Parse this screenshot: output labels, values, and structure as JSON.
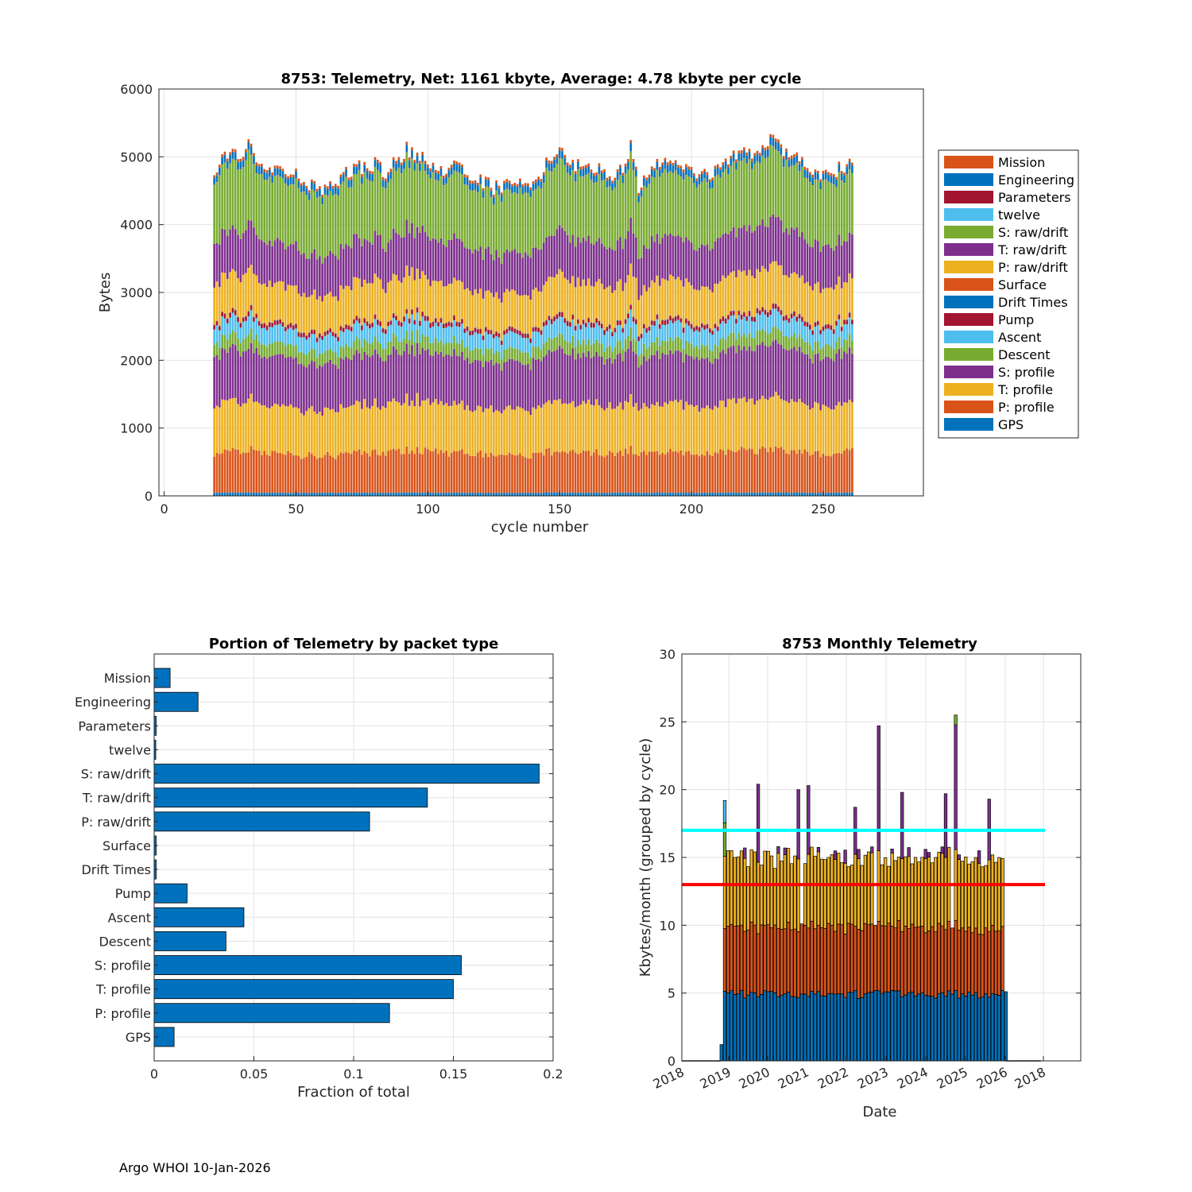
{
  "footer": "Argo WHOI 10-Jan-2026",
  "colors": {
    "mission": "#D95319",
    "engineering": "#0072BD",
    "parameters": "#A2142F",
    "twelve": "#4DBEEE",
    "s_raw": "#77AC30",
    "t_raw": "#7E2F8E",
    "p_raw": "#EDB120",
    "surface": "#D95319",
    "drift": "#0072BD",
    "pump": "#A2142F",
    "ascent": "#4DBEEE",
    "descent": "#77AC30",
    "s_prof": "#7E2F8E",
    "t_prof": "#EDB120",
    "p_prof": "#D95319",
    "gps": "#0072BD",
    "bar": "#0072BD",
    "line_cyan": "#00FFFF",
    "line_red": "#FF0000"
  },
  "chart_data": [
    {
      "type": "bar",
      "stacked": true,
      "title": "8753: Telemetry, Net:   1161 kbyte,  Average: 4.78 kbyte per cycle",
      "xlabel": "cycle number",
      "ylabel": "Bytes",
      "xlim": [
        -2,
        288
      ],
      "ylim": [
        0,
        6000
      ],
      "xticks": [
        0,
        50,
        100,
        150,
        200,
        250
      ],
      "yticks": [
        0,
        1000,
        2000,
        3000,
        4000,
        5000,
        6000
      ],
      "grid": true,
      "legend_position": "outside-right",
      "cycle_range": [
        19,
        261
      ],
      "legend": [
        "Mission",
        "Engineering",
        "Parameters",
        "twelve",
        "S: raw/drift",
        "T: raw/drift",
        "P: raw/drift",
        "Surface",
        "Drift Times",
        "Pump",
        "Ascent",
        "Descent",
        "S: profile",
        "T: profile",
        "P: profile",
        "GPS"
      ],
      "stack_order_bottom_to_top": [
        "GPS",
        "P: profile",
        "T: profile",
        "S: profile",
        "Descent",
        "Ascent",
        "Pump",
        "Drift Times",
        "Surface",
        "P: raw/drift",
        "T: raw/drift",
        "S: raw/drift",
        "twelve",
        "Parameters",
        "Engineering",
        "Mission"
      ],
      "typical_segment_bytes": [
        45,
        570,
        680,
        700,
        180,
        230,
        60,
        5,
        5,
        550,
        600,
        900,
        2,
        5,
        100,
        40
      ],
      "totals_sample": [
        [
          19,
          4700
        ],
        [
          20,
          4800
        ],
        [
          22,
          5100
        ],
        [
          25,
          5050
        ],
        [
          30,
          4950
        ],
        [
          32,
          5300
        ],
        [
          35,
          4900
        ],
        [
          40,
          4850
        ],
        [
          45,
          4850
        ],
        [
          50,
          4780
        ],
        [
          55,
          4600
        ],
        [
          60,
          4500
        ],
        [
          65,
          4600
        ],
        [
          70,
          4800
        ],
        [
          75,
          4850
        ],
        [
          80,
          4900
        ],
        [
          85,
          4750
        ],
        [
          88,
          5000
        ],
        [
          90,
          4850
        ],
        [
          92,
          5150
        ],
        [
          95,
          5000
        ],
        [
          100,
          4950
        ],
        [
          105,
          4800
        ],
        [
          110,
          4950
        ],
        [
          115,
          4700
        ],
        [
          120,
          4650
        ],
        [
          125,
          4550
        ],
        [
          130,
          4600
        ],
        [
          135,
          4650
        ],
        [
          140,
          4550
        ],
        [
          145,
          4900
        ],
        [
          150,
          5100
        ],
        [
          155,
          4900
        ],
        [
          160,
          4800
        ],
        [
          165,
          4800
        ],
        [
          170,
          4750
        ],
        [
          175,
          4800
        ],
        [
          177,
          5350
        ],
        [
          180,
          4500
        ],
        [
          185,
          4800
        ],
        [
          190,
          5000
        ],
        [
          195,
          4850
        ],
        [
          200,
          4800
        ],
        [
          205,
          4750
        ],
        [
          210,
          4800
        ],
        [
          215,
          5000
        ],
        [
          220,
          5050
        ],
        [
          225,
          5100
        ],
        [
          230,
          5250
        ],
        [
          235,
          5100
        ],
        [
          240,
          5000
        ],
        [
          245,
          4800
        ],
        [
          250,
          4750
        ],
        [
          255,
          4800
        ],
        [
          261,
          4920
        ]
      ]
    },
    {
      "type": "bar",
      "orientation": "horizontal",
      "title": "Portion of Telemetry by packet type",
      "xlabel": "Fraction of total",
      "xlim": [
        0,
        0.2
      ],
      "xticks": [
        0,
        0.05,
        0.1,
        0.15,
        0.2
      ],
      "xtick_labels": [
        "0",
        "0.05",
        "0.1",
        "0.15",
        "0.2"
      ],
      "grid": true,
      "categories": [
        "Mission",
        "Engineering",
        "Parameters",
        "twelve",
        "S: raw/drift",
        "T: raw/drift",
        "P: raw/drift",
        "Surface",
        "Drift Times",
        "Pump",
        "Ascent",
        "Descent",
        "S: profile",
        "T: profile",
        "P: profile",
        "GPS"
      ],
      "values": [
        0.008,
        0.022,
        0.001,
        0.0008,
        0.193,
        0.137,
        0.108,
        0.001,
        0.001,
        0.0165,
        0.045,
        0.036,
        0.154,
        0.15,
        0.118,
        0.01
      ]
    },
    {
      "type": "bar",
      "stacked": true,
      "title": "8753 Monthly Telemetry",
      "xlabel": "Date",
      "ylabel": "Kbytes/month (grouped by cycle)",
      "ylim": [
        0,
        30
      ],
      "yticks": [
        0,
        5,
        10,
        15,
        20,
        25,
        30
      ],
      "xtick_labels": [
        "2018",
        "2019",
        "2020",
        "2021",
        "2022",
        "2023",
        "2024",
        "2025",
        "2026",
        "2018"
      ],
      "grid": true,
      "start_month": "2019-02",
      "month_count": 86,
      "reference_lines": [
        {
          "value": 17,
          "color": "#00FFFF"
        },
        {
          "value": 13,
          "color": "#FF0000"
        }
      ],
      "series_colors": [
        "#0072BD",
        "#D95319",
        "#EDB120",
        "#7E2F8E",
        "#77AC30",
        "#4DBEEE"
      ],
      "monthly_totals_sample": [
        [
          "2019-02",
          1.2
        ],
        [
          "2019-03",
          19.2
        ],
        [
          "2019-04",
          15.5
        ],
        [
          "2019-06",
          15.0
        ],
        [
          "2019-09",
          15.7
        ],
        [
          "2020-01",
          20.4
        ],
        [
          "2020-06",
          14.2
        ],
        [
          "2021-01",
          20.0
        ],
        [
          "2021-02",
          10.1
        ],
        [
          "2021-04",
          20.3
        ],
        [
          "2021-10",
          15.0
        ],
        [
          "2022-06",
          18.7
        ],
        [
          "2022-12",
          10.0
        ],
        [
          "2023-01",
          24.2
        ],
        [
          "2023-08",
          19.8
        ],
        [
          "2024-06",
          15.0
        ],
        [
          "2024-09",
          19.7
        ],
        [
          "2024-11",
          9.8
        ],
        [
          "2024-12",
          25.5
        ],
        [
          "2025-06",
          15.0
        ],
        [
          "2025-10",
          19.3
        ],
        [
          "2026-01",
          15.0
        ],
        [
          "2026-03",
          5.1
        ]
      ]
    }
  ]
}
